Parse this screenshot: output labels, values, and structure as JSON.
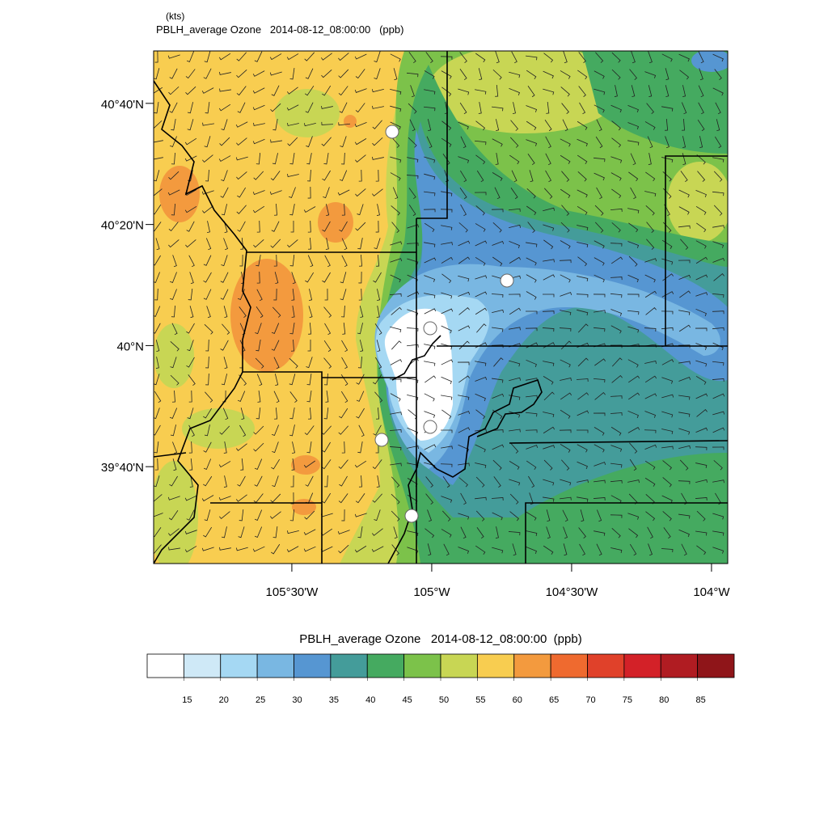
{
  "header": {
    "units": "(kts)",
    "title": "PBLH_average Ozone   2014-08-12_08:00:00   (ppb)"
  },
  "map": {
    "xlim": [
      -105.994,
      -103.942
    ],
    "ylim": [
      39.4,
      40.811
    ],
    "xticks": [
      {
        "value": -105.5,
        "label": "105°30'W"
      },
      {
        "value": -105,
        "label": "105°W"
      },
      {
        "value": -104.5,
        "label": "104°30'W"
      },
      {
        "value": -104,
        "label": "104°W"
      }
    ],
    "yticks": [
      {
        "value": 40.6667,
        "label": "40°40'N"
      },
      {
        "value": 40.3333,
        "label": "40°20'N"
      },
      {
        "value": 40,
        "label": "40°N"
      },
      {
        "value": 39.6667,
        "label": "39°40'N"
      }
    ]
  },
  "colorbar": {
    "title": "PBLH_average Ozone   2014-08-12_08:00:00  (ppb)",
    "colors": [
      "#ffffff",
      "#cfe9f7",
      "#a5d8f3",
      "#79b7e2",
      "#5696d2",
      "#449c9a",
      "#45aa60",
      "#7cc24a",
      "#c8d654",
      "#f8cd50",
      "#f39a3e",
      "#ef6a2f",
      "#e0412a",
      "#d32128",
      "#b01c22",
      "#8f1519"
    ],
    "levels": [
      15,
      20,
      25,
      30,
      35,
      40,
      45,
      50,
      55,
      60,
      65,
      70,
      75,
      80,
      85
    ]
  }
}
